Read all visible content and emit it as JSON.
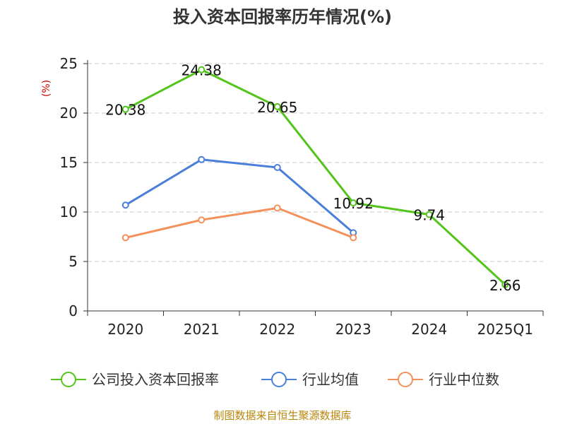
{
  "chart_data": {
    "type": "line",
    "title": "投入资本回报率历年情况(%)",
    "ylabel": "(%)",
    "xlabel": "",
    "categories": [
      "2020",
      "2021",
      "2022",
      "2023",
      "2024",
      "2025Q1"
    ],
    "ylim": [
      0,
      25
    ],
    "yticks": [
      0,
      5,
      10,
      15,
      20,
      25
    ],
    "grid": true,
    "legend_position": "bottom",
    "series": [
      {
        "name": "公司投入资本回报率",
        "color": "#52c41a",
        "values": [
          20.38,
          24.38,
          20.65,
          10.92,
          9.74,
          2.66
        ],
        "labels": [
          "20.38",
          "24.38",
          "20.65",
          "10.92",
          "9.74",
          "2.66"
        ]
      },
      {
        "name": "行业均值",
        "color": "#4a7fd9",
        "values": [
          10.7,
          15.3,
          14.5,
          7.9,
          null,
          null
        ]
      },
      {
        "name": "行业中位数",
        "color": "#f4905a",
        "values": [
          7.4,
          9.2,
          10.4,
          7.4,
          null,
          null
        ]
      }
    ]
  },
  "source": "制图数据来自恒生聚源数据库"
}
